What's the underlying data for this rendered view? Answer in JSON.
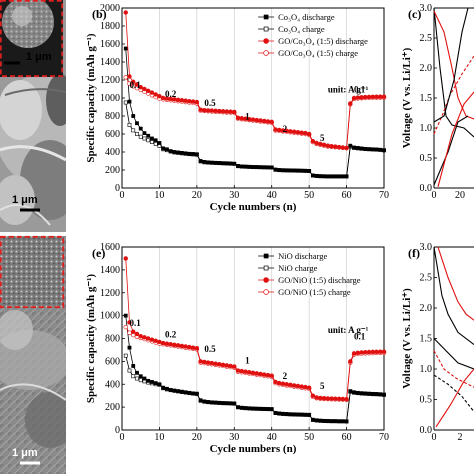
{
  "micrographs": [
    {
      "scale_label": "1 μm",
      "inset_scale_label": "1 μm"
    },
    {
      "scale_label": "1 μm"
    }
  ],
  "chart_data": [
    {
      "type": "scatter",
      "panel_label": "(b)",
      "title": "",
      "xlabel": "Cycle numbers (n)",
      "ylabel": "Specific capacity (mAh g⁻¹)",
      "xlim": [
        0,
        70
      ],
      "ylim": [
        0,
        2000
      ],
      "xticks": [
        0,
        10,
        20,
        30,
        40,
        50,
        60,
        70
      ],
      "yticks": [
        0,
        200,
        400,
        600,
        800,
        1000,
        1200,
        1400,
        1600,
        1800,
        2000
      ],
      "grid_x": [
        10,
        20,
        30,
        40,
        50,
        60
      ],
      "unit_note": "unit: A g⁻¹",
      "rate_labels": [
        {
          "text": "0.1",
          "x": 3.5,
          "y": 1110
        },
        {
          "text": "0.2",
          "x": 13,
          "y": 1010
        },
        {
          "text": "0.5",
          "x": 23.5,
          "y": 910
        },
        {
          "text": "1",
          "x": 33.5,
          "y": 760
        },
        {
          "text": "2",
          "x": 43.5,
          "y": 625
        },
        {
          "text": "5",
          "x": 53.5,
          "y": 520
        },
        {
          "text": "0.1",
          "x": 63.5,
          "y": 1060
        }
      ],
      "legend": {
        "position": "top-right"
      },
      "series": [
        {
          "name": "Co₃O₄ discharge",
          "color": "#000000",
          "marker": "square",
          "fill": "filled",
          "values": [
            1550,
            960,
            800,
            720,
            660,
            610,
            580,
            550,
            530,
            500,
            440,
            430,
            410,
            400,
            395,
            390,
            385,
            380,
            378,
            375,
            300,
            290,
            285,
            282,
            280,
            278,
            276,
            275,
            273,
            270,
            245,
            240,
            238,
            236,
            234,
            233,
            232,
            231,
            230,
            229,
            205,
            200,
            198,
            197,
            196,
            195,
            194,
            193,
            192,
            190,
            140,
            135,
            132,
            131,
            130,
            130,
            130,
            130,
            130,
            130,
            470,
            450,
            445,
            440,
            435,
            432,
            430,
            428,
            425,
            420
          ]
        },
        {
          "name": "Co₃O₄ charge",
          "color": "#000000",
          "marker": "square",
          "fill": "open",
          "values": [
            950,
            700,
            640,
            600,
            570,
            550,
            530,
            510,
            490,
            470,
            430,
            420,
            405,
            395,
            390,
            385,
            380,
            376,
            373,
            370,
            295,
            285,
            282,
            280,
            278,
            276,
            274,
            272,
            270,
            268,
            242,
            238,
            236,
            234,
            232,
            231,
            230,
            229,
            228,
            227,
            202,
            198,
            196,
            195,
            194,
            193,
            192,
            191,
            190,
            188,
            138,
            133,
            130,
            129,
            128,
            128,
            128,
            128,
            128,
            128,
            460,
            445,
            440,
            436,
            432,
            430,
            428,
            426,
            423,
            418
          ]
        },
        {
          "name": "GO/Co₃O₄ (1:5) discharge",
          "color": "#e01010",
          "marker": "circle",
          "fill": "filled",
          "values": [
            1950,
            1240,
            1180,
            1150,
            1120,
            1100,
            1080,
            1060,
            1040,
            1020,
            1000,
            995,
            990,
            985,
            980,
            975,
            970,
            965,
            960,
            955,
            870,
            865,
            862,
            860,
            858,
            855,
            852,
            850,
            848,
            845,
            780,
            775,
            770,
            765,
            760,
            755,
            750,
            745,
            740,
            735,
            650,
            645,
            640,
            635,
            630,
            625,
            620,
            615,
            610,
            600,
            520,
            500,
            490,
            480,
            470,
            465,
            460,
            455,
            450,
            445,
            940,
            1000,
            1005,
            1008,
            1010,
            1012,
            1013,
            1014,
            1015,
            1015
          ]
        },
        {
          "name": "GO/Co₃O₄ (1:5) charge",
          "color": "#e01010",
          "marker": "circle",
          "fill": "open",
          "values": [
            1230,
            1160,
            1130,
            1110,
            1090,
            1070,
            1050,
            1030,
            1010,
            995,
            985,
            980,
            975,
            970,
            965,
            960,
            955,
            950,
            945,
            940,
            860,
            856,
            853,
            850,
            847,
            845,
            842,
            840,
            838,
            835,
            770,
            765,
            760,
            755,
            750,
            745,
            740,
            735,
            730,
            725,
            640,
            635,
            630,
            625,
            620,
            615,
            610,
            605,
            600,
            590,
            510,
            490,
            480,
            470,
            462,
            458,
            454,
            450,
            446,
            442,
            930,
            990,
            995,
            998,
            1000,
            1002,
            1003,
            1004,
            1005,
            1005
          ]
        }
      ]
    },
    {
      "type": "scatter",
      "panel_label": "(e)",
      "title": "",
      "xlabel": "Cycle numbers (n)",
      "ylabel": "Specific capacity (mAh g⁻¹)",
      "xlim": [
        0,
        70
      ],
      "ylim": [
        0,
        1600
      ],
      "xticks": [
        0,
        10,
        20,
        30,
        40,
        50,
        60,
        70
      ],
      "yticks": [
        0,
        200,
        400,
        600,
        800,
        1000,
        1200,
        1400,
        1600
      ],
      "grid_x": [
        10,
        20,
        30,
        40,
        50,
        60
      ],
      "unit_note": "unit: A g⁻¹",
      "rate_labels": [
        {
          "text": "0.1",
          "x": 3.5,
          "y": 910
        },
        {
          "text": "0.2",
          "x": 13,
          "y": 810
        },
        {
          "text": "0.5",
          "x": 23.5,
          "y": 680
        },
        {
          "text": "1",
          "x": 33.5,
          "y": 580
        },
        {
          "text": "2",
          "x": 43.5,
          "y": 445
        },
        {
          "text": "5",
          "x": 53.5,
          "y": 360
        },
        {
          "text": "0.1",
          "x": 63.5,
          "y": 790
        }
      ],
      "legend": {
        "position": "top-right"
      },
      "series": [
        {
          "name": "NiO discharge",
          "color": "#000000",
          "marker": "square",
          "fill": "filled",
          "values": [
            1000,
            720,
            560,
            500,
            470,
            450,
            430,
            420,
            410,
            400,
            370,
            360,
            350,
            345,
            340,
            335,
            330,
            325,
            320,
            318,
            260,
            250,
            245,
            242,
            240,
            238,
            236,
            235,
            234,
            232,
            200,
            195,
            192,
            190,
            188,
            187,
            186,
            185,
            184,
            183,
            150,
            145,
            142,
            140,
            138,
            137,
            136,
            135,
            134,
            133,
            90,
            85,
            82,
            80,
            79,
            78,
            78,
            77,
            77,
            76,
            340,
            330,
            325,
            322,
            320,
            318,
            316,
            315,
            313,
            310
          ]
        },
        {
          "name": "NiO charge",
          "color": "#000000",
          "marker": "square",
          "fill": "open",
          "values": [
            650,
            520,
            470,
            450,
            435,
            425,
            415,
            408,
            400,
            395,
            365,
            355,
            348,
            342,
            337,
            332,
            327,
            322,
            318,
            315,
            255,
            247,
            243,
            240,
            238,
            236,
            234,
            233,
            232,
            230,
            198,
            193,
            190,
            188,
            186,
            185,
            184,
            183,
            182,
            181,
            148,
            143,
            140,
            138,
            136,
            135,
            134,
            133,
            132,
            131,
            88,
            83,
            80,
            78,
            77,
            76,
            76,
            75,
            75,
            74,
            335,
            326,
            322,
            319,
            317,
            315,
            313,
            312,
            310,
            307
          ]
        },
        {
          "name": "GO/NiO (1:5) discharge",
          "color": "#e01010",
          "marker": "circle",
          "fill": "filled",
          "values": [
            1500,
            940,
            860,
            840,
            820,
            810,
            800,
            790,
            780,
            770,
            760,
            755,
            750,
            745,
            740,
            735,
            730,
            725,
            720,
            715,
            600,
            595,
            590,
            585,
            580,
            575,
            570,
            565,
            560,
            555,
            520,
            515,
            510,
            505,
            500,
            495,
            490,
            485,
            480,
            475,
            420,
            410,
            405,
            400,
            395,
            390,
            385,
            380,
            375,
            370,
            300,
            285,
            280,
            278,
            276,
            275,
            274,
            273,
            272,
            270,
            600,
            670,
            675,
            678,
            680,
            682,
            683,
            684,
            685,
            685
          ]
        },
        {
          "name": "GO/NiO (1:5) charge",
          "color": "#e01010",
          "marker": "circle",
          "fill": "open",
          "values": [
            900,
            850,
            830,
            815,
            805,
            795,
            785,
            775,
            765,
            755,
            750,
            745,
            740,
            735,
            730,
            725,
            720,
            715,
            710,
            705,
            590,
            585,
            580,
            575,
            570,
            565,
            560,
            555,
            550,
            545,
            510,
            505,
            500,
            495,
            490,
            485,
            480,
            475,
            470,
            465,
            410,
            400,
            395,
            390,
            385,
            380,
            375,
            370,
            365,
            360,
            290,
            278,
            274,
            272,
            270,
            269,
            268,
            267,
            266,
            264,
            590,
            660,
            665,
            668,
            670,
            672,
            673,
            674,
            675,
            675
          ]
        }
      ]
    },
    {
      "type": "line",
      "panel_label": "(c)",
      "title": "",
      "xlabel": "",
      "ylabel": "Voltage (V vs. Li/Li⁺)",
      "ylim": [
        0,
        3.0
      ],
      "yticks": [
        "0.0",
        "0.5",
        "1.0",
        "1.5",
        "2.0",
        "2.5",
        "3.0"
      ],
      "xticks_visible": [
        "0",
        "20"
      ],
      "series": []
    },
    {
      "type": "line",
      "panel_label": "(f)",
      "title": "",
      "xlabel": "",
      "ylabel": "Voltage (V vs. Li/Li⁺)",
      "ylim": [
        0,
        3.0
      ],
      "yticks": [
        "0.0",
        "0.5",
        "1.0",
        "1.5",
        "2.0",
        "2.5",
        "3.0"
      ],
      "xticks_visible": [
        "0",
        "2"
      ],
      "series": []
    }
  ]
}
